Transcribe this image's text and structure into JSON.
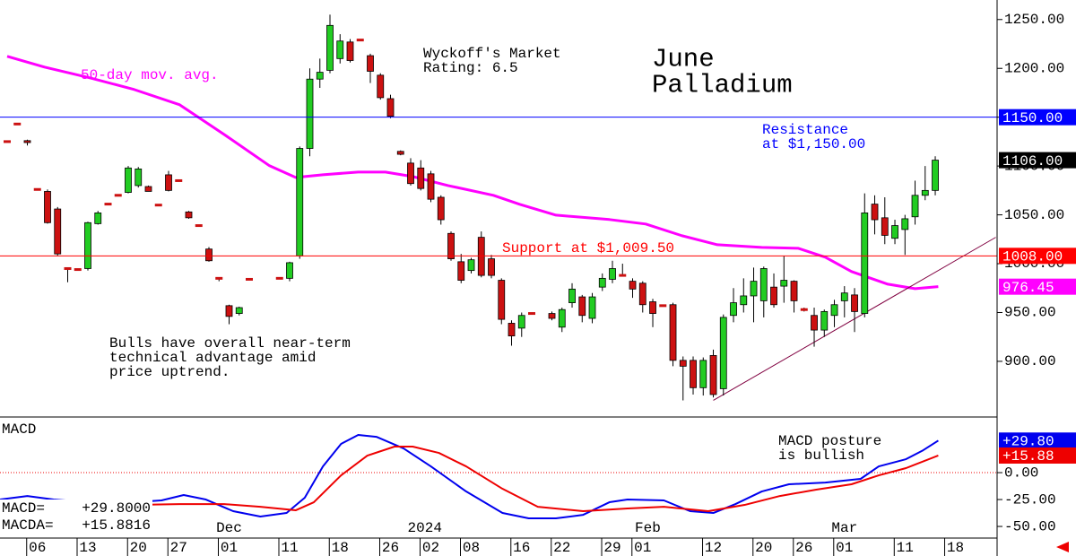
{
  "chart_data": [
    {
      "type": "candlestick",
      "title": [
        "June",
        "Palladium"
      ],
      "xlim": [
        -0.71,
        98.13
      ],
      "ylim": [
        843,
        1270
      ],
      "yticks": [
        {
          "value": 900,
          "label": "900.00"
        },
        {
          "value": 950,
          "label": "950.00"
        },
        {
          "value": 1000,
          "label": "1000.00"
        },
        {
          "value": 1050,
          "label": "1050.00"
        },
        {
          "value": 1100,
          "label": "1100.00"
        },
        {
          "value": 1150,
          "label": "1150.00"
        },
        {
          "value": 1200,
          "label": "1200.00"
        },
        {
          "value": 1250,
          "label": "1250.00"
        }
      ],
      "up_color": "#22cc22",
      "down_color": "#cc1111",
      "x": [
        0,
        1,
        2,
        3,
        4,
        5,
        6,
        7,
        8,
        9,
        10,
        11,
        12,
        13,
        14,
        15,
        16,
        17,
        18,
        19,
        20,
        21,
        22,
        23,
        24,
        27,
        28,
        29,
        30,
        31,
        32,
        33,
        34,
        35,
        36,
        37,
        38,
        39,
        40,
        41,
        42,
        43,
        44,
        45,
        46,
        47,
        48,
        49,
        50,
        51,
        52,
        54,
        55,
        56,
        57,
        58,
        59,
        60,
        61,
        62,
        63,
        64,
        65,
        66,
        67,
        68,
        69,
        70,
        71,
        72,
        73,
        74,
        75,
        76,
        77,
        78,
        79,
        80,
        81,
        82,
        83,
        84,
        85,
        86,
        87,
        88,
        89,
        90,
        91,
        92
      ],
      "open": [
        1125,
        1143,
        1126,
        1076,
        1074,
        1056,
        995,
        994,
        995,
        1041,
        1061,
        1070,
        1073,
        1080,
        1079,
        1060,
        1091,
        1085,
        1053,
        1039,
        1015,
        985,
        957,
        949,
        984,
        985,
        985,
        1008,
        1118,
        1189,
        1198,
        1210,
        1227,
        1229,
        1213,
        1193,
        1169,
        1115,
        1103,
        1098,
        1092,
        1068,
        1031,
        1002,
        993,
        1027,
        1005,
        983,
        939,
        934,
        949,
        949,
        935,
        960,
        966,
        944,
        976,
        984,
        988,
        982,
        980,
        961,
        957,
        958,
        901,
        901,
        873,
        906,
        872,
        947,
        958,
        967,
        962,
        976,
        977,
        982,
        953,
        947,
        932,
        947,
        962,
        968,
        949,
        1061,
        1047,
        1026,
        1035,
        1048,
        1070,
        1075
      ],
      "high": [
        1126,
        1144,
        1127,
        1077,
        1076,
        1058,
        996,
        995,
        1043,
        1054,
        1062,
        1071,
        1100,
        1099,
        1080,
        1061,
        1095,
        1086,
        1054,
        1040,
        1017,
        986,
        958,
        956,
        985,
        986,
        1002,
        1120,
        1200,
        1210,
        1255,
        1235,
        1230,
        1230,
        1215,
        1195,
        1173,
        1116,
        1108,
        1106,
        1095,
        1070,
        1033,
        1010,
        1006,
        1033,
        1009,
        985,
        942,
        950,
        950,
        951,
        955,
        980,
        968,
        970,
        990,
        1003,
        1000,
        985,
        982,
        964,
        958,
        960,
        905,
        905,
        904,
        912,
        948,
        975,
        985,
        996,
        997,
        990,
        1008,
        983,
        955,
        955,
        953,
        963,
        977,
        975,
        1072,
        1070,
        1068,
        1045,
        1050,
        1085,
        1100,
        1110
      ],
      "low": [
        1124,
        1142,
        1121,
        1075,
        1041,
        1008,
        981,
        993,
        993,
        1040,
        1060,
        1069,
        1072,
        1078,
        1074,
        1059,
        1074,
        1084,
        1046,
        1038,
        1002,
        982,
        938,
        947,
        983,
        984,
        982,
        1005,
        1110,
        1180,
        1195,
        1205,
        1206,
        1228,
        1185,
        1168,
        1149,
        1111,
        1080,
        1075,
        1063,
        1040,
        1003,
        980,
        990,
        986,
        985,
        938,
        916,
        925,
        948,
        942,
        930,
        955,
        940,
        939,
        972,
        980,
        987,
        965,
        950,
        935,
        956,
        895,
        860,
        866,
        865,
        863,
        865,
        940,
        950,
        940,
        945,
        955,
        960,
        950,
        951,
        915,
        925,
        935,
        945,
        930,
        945,
        1030,
        1020,
        1020,
        1009,
        1040,
        1065,
        1070
      ],
      "close": [
        1125,
        1143,
        1124,
        1076,
        1042,
        1010,
        995,
        994,
        1042,
        1052,
        1061,
        1070,
        1098,
        1097,
        1074,
        1060,
        1075,
        1085,
        1047,
        1039,
        1003,
        985,
        946,
        955,
        984,
        985,
        1001,
        1118,
        1189,
        1196,
        1244,
        1228,
        1208,
        1229,
        1197,
        1170,
        1151,
        1112,
        1082,
        1077,
        1066,
        1045,
        1005,
        983,
        1004,
        988,
        988,
        943,
        926,
        947,
        949,
        944,
        953,
        974,
        947,
        966,
        985,
        995,
        988,
        974,
        958,
        949,
        957,
        901,
        895,
        873,
        901,
        866,
        945,
        960,
        967,
        982,
        995,
        958,
        983,
        962,
        953,
        932,
        951,
        958,
        970,
        951,
        1052,
        1045,
        1029,
        1039,
        1046,
        1070,
        1075,
        1106
      ],
      "overlays": [
        {
          "name": "50-day mov. avg.",
          "color": "#ff00ff",
          "x": [
            0,
            3.7,
            8.2,
            12.6,
            17.1,
            21.5,
            26,
            28.6,
            31.3,
            34.8,
            37.5,
            40.2,
            43.7,
            48.2,
            50.8,
            54.4,
            59.7,
            63.3,
            66.9,
            70.4,
            74.8,
            78.4,
            81.1,
            83.7,
            87.3,
            90,
            92.3
          ],
          "values": [
            1212.3,
            1201.3,
            1190.3,
            1178.3,
            1162.7,
            1132.4,
            1100.3,
            1088.3,
            1091.1,
            1093.8,
            1093.8,
            1089.2,
            1080,
            1070,
            1060.8,
            1049.7,
            1045.2,
            1040.6,
            1028.6,
            1019.4,
            1016.7,
            1015.8,
            1006.6,
            991.9,
            979,
            974.4,
            976.45
          ]
        }
      ],
      "trendline": {
        "color": "#800040",
        "x": [
          70,
          98
        ],
        "values": [
          860,
          1027
        ]
      },
      "price_tags": [
        {
          "value": 1150,
          "label": "1150.00",
          "color": "#0000ff",
          "line": true
        },
        {
          "value": 1106,
          "label": "1106.00",
          "color": "#000000",
          "line": false
        },
        {
          "value": 1008,
          "label": "1008.00",
          "color": "#ff0000",
          "line": true
        },
        {
          "value": 976.45,
          "label": "976.45",
          "color": "#ff00ff",
          "line": false
        }
      ],
      "annotations": {
        "rating": [
          "Wyckoff's Market",
          "Rating: 6.5"
        ],
        "resistance": [
          "Resistance",
          "at $1,150.00"
        ],
        "support": "Support at $1,009.50",
        "bulls": [
          "Bulls have overall near-term",
          "technical advantage amid",
          "price uptrend."
        ]
      }
    },
    {
      "type": "line",
      "title": "MACD",
      "xlim": [
        -0.71,
        98.13
      ],
      "ylim": [
        -60.8,
        51.7
      ],
      "yticks": [
        {
          "value": -50,
          "label": "-50.00"
        },
        {
          "value": -25,
          "label": "-25.00"
        },
        {
          "value": 0,
          "label": "0.00"
        }
      ],
      "zero_line": true,
      "xticks": [
        {
          "value": 3,
          "label": "06"
        },
        {
          "value": 8,
          "label": "13"
        },
        {
          "value": 13,
          "label": "20"
        },
        {
          "value": 17,
          "label": "27"
        },
        {
          "value": 22,
          "label": "01"
        },
        {
          "value": 28,
          "label": "11"
        },
        {
          "value": 33,
          "label": "18"
        },
        {
          "value": 38,
          "label": "26"
        },
        {
          "value": 42,
          "label": "02"
        },
        {
          "value": 46,
          "label": "08"
        },
        {
          "value": 51,
          "label": "16"
        },
        {
          "value": 55,
          "label": "22"
        },
        {
          "value": 60,
          "label": "29"
        },
        {
          "value": 63,
          "label": "01"
        },
        {
          "value": 70,
          "label": "12"
        },
        {
          "value": 75,
          "label": "20"
        },
        {
          "value": 79,
          "label": "26"
        },
        {
          "value": 83,
          "label": "01"
        },
        {
          "value": 89,
          "label": "11"
        },
        {
          "value": 94,
          "label": "18"
        }
      ],
      "month_labels": [
        {
          "value": 22,
          "label": "Dec"
        },
        {
          "value": 41.4,
          "label": "2024"
        },
        {
          "value": 63.5,
          "label": "Feb"
        },
        {
          "value": 83,
          "label": "Mar"
        }
      ],
      "series": [
        {
          "color": "#0000ee",
          "x": [
            -0.7,
            2,
            4.6,
            8.2,
            12.6,
            15.3,
            17.5,
            19.7,
            22.4,
            25.1,
            27.7,
            29.5,
            31.3,
            33.1,
            34.8,
            36.6,
            39.3,
            42,
            45.5,
            49.1,
            51.7,
            54.4,
            57.1,
            59.7,
            61.5,
            65.1,
            67.7,
            70,
            72.2,
            74.8,
            77.5,
            81.1,
            84.6,
            86.4,
            89.1,
            90.8,
            92.3
          ],
          "values": [
            -25,
            -21.7,
            -25,
            -27.5,
            -27.5,
            -25.8,
            -20.8,
            -25,
            -35.8,
            -40.8,
            -37.5,
            -23.3,
            5.8,
            26.7,
            35,
            33.3,
            22.5,
            5.8,
            -17.5,
            -37.5,
            -42.5,
            -42.5,
            -39.2,
            -27.5,
            -25,
            -25.8,
            -35.8,
            -37.5,
            -29.2,
            -17.5,
            -10.8,
            -9.2,
            -5.8,
            5.8,
            12.5,
            20.8,
            29.8
          ]
        },
        {
          "color": "#ee0000",
          "x": [
            -0.7,
            3.7,
            8.2,
            12.6,
            17.1,
            21.5,
            25.1,
            28.6,
            30.4,
            33.1,
            35.7,
            38.4,
            40.2,
            42.8,
            45.5,
            49.1,
            52.6,
            57.1,
            61.5,
            65.1,
            69.5,
            73.1,
            76.6,
            80.2,
            83.7,
            86.4,
            89.1,
            92.3
          ],
          "values": [
            -27.5,
            -29.2,
            -27.5,
            -30,
            -29.2,
            -29.2,
            -31.7,
            -35,
            -27.5,
            -2.5,
            15.8,
            24.2,
            24.2,
            18.3,
            5.8,
            -15,
            -31.7,
            -35.8,
            -33.3,
            -31.7,
            -35.8,
            -30,
            -21.7,
            -15.8,
            -10.8,
            -2.5,
            4.2,
            15.8816
          ]
        }
      ],
      "price_tags": [
        {
          "value": 29.8,
          "label": "+29.80",
          "color": "#0000ee"
        },
        {
          "value": 15.88,
          "label": "+15.88",
          "color": "#ee0000"
        }
      ],
      "annotation": [
        "MACD posture",
        "is bullish"
      ],
      "readout": [
        {
          "label": "MACD=",
          "value": "+29.8000"
        },
        {
          "label": "MACDA=",
          "value": "+15.8816"
        }
      ]
    }
  ]
}
